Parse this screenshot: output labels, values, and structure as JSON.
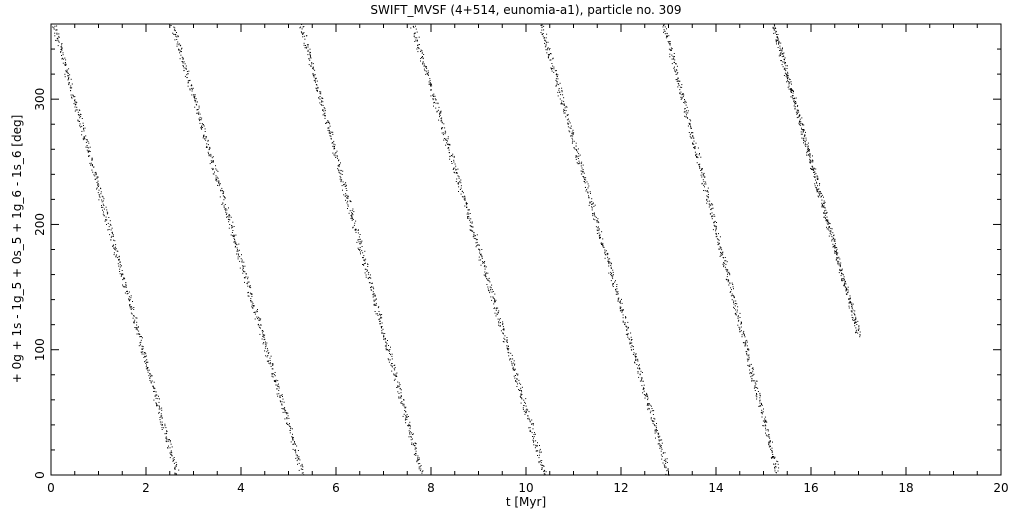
{
  "chart_data": {
    "type": "scatter",
    "title": "SWIFT_MVSF (4+514, eunomia-a1), particle no. 309",
    "xlabel": "t [Myr]",
    "ylabel": "+ 0g + 1s - 1g_5 + 0s_5 + 1g_6 - 1s_6 [deg]",
    "xlim": [
      0,
      20
    ],
    "ylim": [
      0,
      360
    ],
    "x_ticks": [
      "0",
      "2",
      "4",
      "6",
      "8",
      "10",
      "12",
      "14",
      "16",
      "18",
      "20"
    ],
    "y_ticks": [
      "0",
      "100",
      "200",
      "300"
    ],
    "grid": false,
    "color": "#000000",
    "series": [
      {
        "segments": [
          {
            "x_start": 0.05,
            "y_start": 360,
            "x_end": 2.65,
            "y_end": 0
          },
          {
            "x_start": 2.55,
            "y_start": 360,
            "x_end": 5.3,
            "y_end": 0
          },
          {
            "x_start": 5.25,
            "y_start": 360,
            "x_end": 7.8,
            "y_end": 0
          },
          {
            "x_start": 7.6,
            "y_start": 360,
            "x_end": 10.4,
            "y_end": 0
          },
          {
            "x_start": 10.3,
            "y_start": 360,
            "x_end": 13.0,
            "y_end": 0
          },
          {
            "x_start": 12.9,
            "y_start": 360,
            "x_end": 15.3,
            "y_end": 0
          },
          {
            "x_start": 15.2,
            "y_start": 360,
            "x_end": 17.0,
            "y_end": 112
          }
        ]
      }
    ]
  }
}
